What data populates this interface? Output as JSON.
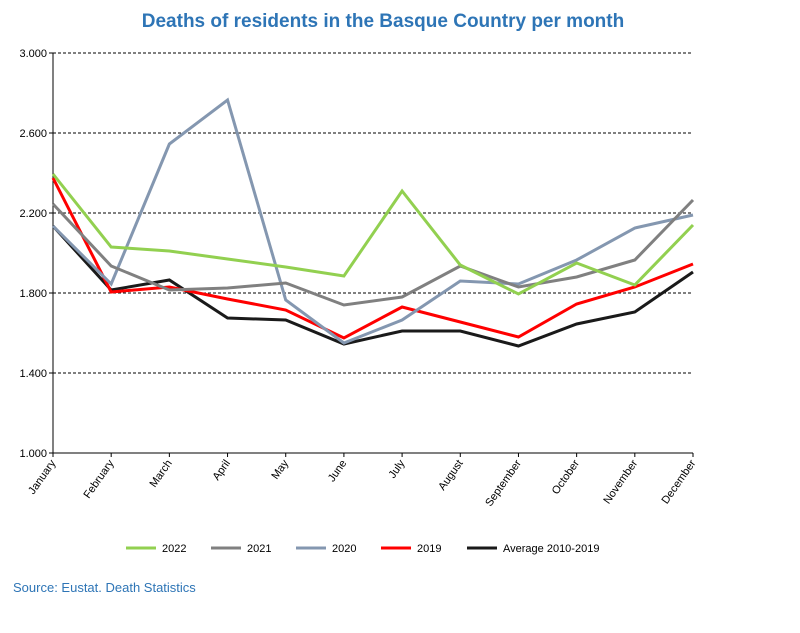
{
  "chart_data": {
    "type": "line",
    "title": "Deaths of residents in the Basque Country per month",
    "xlabel": "",
    "ylabel": "",
    "ylim": [
      1000,
      3000
    ],
    "yticks": [
      "1.000",
      "1.400",
      "1.800",
      "2.200",
      "2.600",
      "3.000"
    ],
    "ytick_values": [
      1000,
      1400,
      1800,
      2200,
      2600,
      3000
    ],
    "grid": true,
    "legend_position": "bottom",
    "categories": [
      "January",
      "February",
      "March",
      "April",
      "May",
      "June",
      "July",
      "August",
      "September",
      "October",
      "November",
      "December"
    ],
    "series": [
      {
        "name": "2022",
        "color": "#92d050",
        "values": [
          2395,
          2030,
          2010,
          1970,
          1930,
          1885,
          2310,
          1940,
          1795,
          1950,
          1840,
          2140
        ]
      },
      {
        "name": "2021",
        "color": "#808080",
        "values": [
          2245,
          1935,
          1815,
          1825,
          1850,
          1740,
          1780,
          1935,
          1830,
          1880,
          1965,
          2265
        ]
      },
      {
        "name": "2020",
        "color": "#8497b0",
        "values": [
          2135,
          1845,
          2545,
          2765,
          1765,
          1550,
          1665,
          1860,
          1845,
          1965,
          2125,
          2190
        ]
      },
      {
        "name": "2019",
        "color": "#ff0000",
        "values": [
          2375,
          1805,
          1830,
          1770,
          1715,
          1575,
          1730,
          1655,
          1580,
          1745,
          1830,
          1945
        ]
      },
      {
        "name": "Average 2010-2019",
        "color": "#1a1a1a",
        "values": [
          2135,
          1815,
          1865,
          1675,
          1665,
          1545,
          1610,
          1610,
          1535,
          1645,
          1705,
          1905
        ]
      }
    ]
  },
  "source": "Source: Eustat. Death Statistics"
}
